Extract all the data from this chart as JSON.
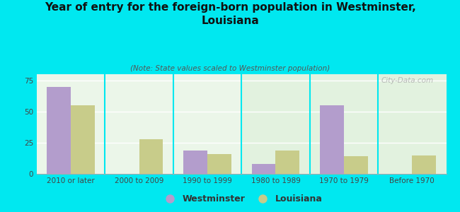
{
  "title": "Year of entry for the foreign-born population in Westminster,\nLouisiana",
  "subtitle": "(Note: State values scaled to Westminster population)",
  "categories": [
    "2010 or later",
    "2000 to 2009",
    "1990 to 1999",
    "1980 to 1989",
    "1970 to 1979",
    "Before 1970"
  ],
  "westminster_values": [
    70,
    0,
    19,
    8,
    55,
    0
  ],
  "louisiana_values": [
    55,
    28,
    16,
    19,
    14,
    15
  ],
  "westminster_color": "#b39dcc",
  "louisiana_color": "#c8cc8a",
  "background_color": "#00e8f0",
  "plot_bg_color": "#eaf5e8",
  "ylim": [
    0,
    80
  ],
  "yticks": [
    0,
    25,
    50,
    75
  ],
  "bar_width": 0.35,
  "watermark": "City-Data.com",
  "title_fontsize": 11,
  "subtitle_fontsize": 7.5,
  "tick_fontsize": 7.5,
  "legend_fontsize": 9
}
